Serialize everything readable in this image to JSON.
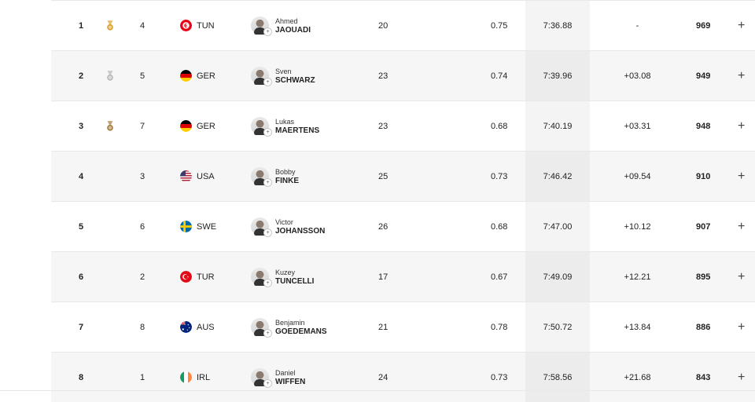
{
  "results": [
    {
      "rank": "1",
      "medal": "gold",
      "lane": "4",
      "country": "TUN",
      "flag": "tun",
      "first": "Ahmed",
      "last": "JAOUADI",
      "age": "20",
      "reaction": "0.75",
      "time": "7:36.88",
      "diff": "-",
      "points": "969"
    },
    {
      "rank": "2",
      "medal": "silver",
      "lane": "5",
      "country": "GER",
      "flag": "ger",
      "first": "Sven",
      "last": "SCHWARZ",
      "age": "23",
      "reaction": "0.74",
      "time": "7:39.96",
      "diff": "+03.08",
      "points": "949"
    },
    {
      "rank": "3",
      "medal": "bronze",
      "lane": "7",
      "country": "GER",
      "flag": "ger",
      "first": "Lukas",
      "last": "MAERTENS",
      "age": "23",
      "reaction": "0.68",
      "time": "7:40.19",
      "diff": "+03.31",
      "points": "948"
    },
    {
      "rank": "4",
      "medal": "",
      "lane": "3",
      "country": "USA",
      "flag": "usa",
      "first": "Bobby",
      "last": "FINKE",
      "age": "25",
      "reaction": "0.73",
      "time": "7:46.42",
      "diff": "+09.54",
      "points": "910"
    },
    {
      "rank": "5",
      "medal": "",
      "lane": "6",
      "country": "SWE",
      "flag": "swe",
      "first": "Victor",
      "last": "JOHANSSON",
      "age": "26",
      "reaction": "0.68",
      "time": "7:47.00",
      "diff": "+10.12",
      "points": "907"
    },
    {
      "rank": "6",
      "medal": "",
      "lane": "2",
      "country": "TUR",
      "flag": "tur",
      "first": "Kuzey",
      "last": "TUNCELLI",
      "age": "17",
      "reaction": "0.67",
      "time": "7:49.09",
      "diff": "+12.21",
      "points": "895"
    },
    {
      "rank": "7",
      "medal": "",
      "lane": "8",
      "country": "AUS",
      "flag": "aus",
      "first": "Benjamin",
      "last": "GOEDEMANS",
      "age": "21",
      "reaction": "0.78",
      "time": "7:50.72",
      "diff": "+13.84",
      "points": "886"
    },
    {
      "rank": "8",
      "medal": "",
      "lane": "1",
      "country": "IRL",
      "flag": "irl",
      "first": "Daniel",
      "last": "WIFFEN",
      "age": "24",
      "reaction": "0.73",
      "time": "7:58.56",
      "diff": "+21.68",
      "points": "843"
    }
  ],
  "expand_symbol": "+",
  "colors": {
    "gold": "#d9a22c",
    "silver": "#b7b7b7",
    "bronze": "#a67c3f",
    "row_alt": "#f6f6f6",
    "time_bg": "#f4f4f4"
  }
}
